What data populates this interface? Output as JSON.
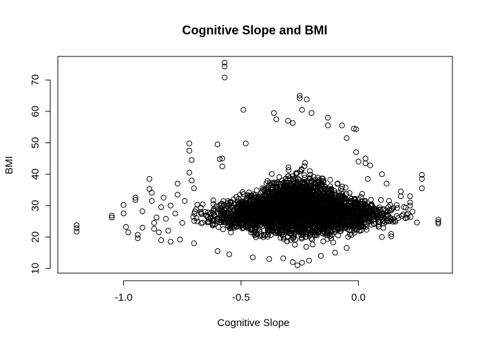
{
  "chart_data": {
    "type": "scatter",
    "title": "Cognitive Slope and BMI",
    "xlabel": "Cognitive Slope",
    "ylabel": "BMI",
    "xlim": [
      -1.28,
      0.4
    ],
    "ylim": [
      8.5,
      77.5
    ],
    "xticks": [
      -1.0,
      -0.5,
      0.0
    ],
    "xtick_labels": [
      "-1.0",
      "-0.5",
      "0.0"
    ],
    "yticks": [
      10,
      20,
      30,
      40,
      50,
      60,
      70
    ],
    "ytick_labels": [
      "10",
      "20",
      "30",
      "40",
      "50",
      "60",
      "70"
    ],
    "grid": false,
    "legend": "none",
    "marker": "open-circle",
    "color": "#000000",
    "points": [
      [
        -1.2,
        23.8
      ],
      [
        -1.2,
        22.8
      ],
      [
        -1.2,
        21.7
      ],
      [
        -1.05,
        26.8
      ],
      [
        -1.05,
        26.2
      ],
      [
        -1.0,
        30.2
      ],
      [
        -1.0,
        27.5
      ],
      [
        -0.99,
        23.2
      ],
      [
        -0.98,
        21.5
      ],
      [
        -0.95,
        32.5
      ],
      [
        -0.95,
        31.8
      ],
      [
        -0.94,
        20.7
      ],
      [
        -0.94,
        19.6
      ],
      [
        -0.92,
        28.2
      ],
      [
        -0.92,
        23.0
      ],
      [
        -0.89,
        38.5
      ],
      [
        -0.89,
        35.3
      ],
      [
        -0.88,
        34.1
      ],
      [
        -0.88,
        31.5
      ],
      [
        -0.87,
        24.5
      ],
      [
        -0.87,
        22.6
      ],
      [
        -0.86,
        26.2
      ],
      [
        -0.85,
        21.5
      ],
      [
        -0.84,
        29.5
      ],
      [
        -0.84,
        19.0
      ],
      [
        -0.83,
        32.5
      ],
      [
        -0.82,
        25.8
      ],
      [
        -0.81,
        22.0
      ],
      [
        -0.8,
        30.0
      ],
      [
        -0.8,
        18.5
      ],
      [
        -0.78,
        27.5
      ],
      [
        -0.77,
        37.0
      ],
      [
        -0.77,
        33.5
      ],
      [
        -0.76,
        19.2
      ],
      [
        -0.75,
        24.5
      ],
      [
        -0.74,
        31.5
      ],
      [
        -0.72,
        49.8
      ],
      [
        -0.72,
        47.5
      ],
      [
        -0.72,
        40.5
      ],
      [
        -0.71,
        44.5
      ],
      [
        -0.71,
        38.0
      ],
      [
        -0.7,
        35.5
      ],
      [
        -0.7,
        18.0
      ],
      [
        -0.6,
        49.5
      ],
      [
        -0.59,
        44.8
      ],
      [
        -0.58,
        45.0
      ],
      [
        -0.58,
        42.5
      ],
      [
        -0.57,
        75.5
      ],
      [
        -0.57,
        74.3
      ],
      [
        -0.57,
        70.8
      ],
      [
        -0.49,
        60.5
      ],
      [
        -0.48,
        49.8
      ],
      [
        -0.36,
        59.5
      ],
      [
        -0.35,
        57.5
      ],
      [
        -0.3,
        57.0
      ],
      [
        -0.28,
        56.3
      ],
      [
        -0.25,
        65.0
      ],
      [
        -0.25,
        64.2
      ],
      [
        -0.24,
        60.5
      ],
      [
        -0.22,
        63.8
      ],
      [
        -0.2,
        59.5
      ],
      [
        -0.13,
        58.0
      ],
      [
        -0.13,
        55.5
      ],
      [
        -0.07,
        55.5
      ],
      [
        -0.05,
        51.5
      ],
      [
        -0.02,
        54.5
      ],
      [
        -0.01,
        54.3
      ],
      [
        -0.01,
        47.0
      ],
      [
        0.0,
        44.0
      ],
      [
        0.03,
        45.0
      ],
      [
        0.03,
        43.5
      ],
      [
        0.05,
        42.8
      ],
      [
        0.04,
        38.5
      ],
      [
        0.1,
        40.0
      ],
      [
        0.12,
        37.0
      ],
      [
        0.14,
        28.5
      ],
      [
        0.13,
        31.5
      ],
      [
        0.18,
        34.5
      ],
      [
        0.18,
        33.0
      ],
      [
        0.2,
        26.0
      ],
      [
        0.21,
        27.5
      ],
      [
        0.22,
        33.0
      ],
      [
        0.22,
        31.0
      ],
      [
        0.22,
        30.0
      ],
      [
        0.27,
        39.8
      ],
      [
        0.27,
        38.5
      ],
      [
        0.27,
        35.5
      ],
      [
        0.34,
        25.5
      ],
      [
        0.34,
        24.8
      ],
      [
        0.34,
        24.3
      ],
      [
        -0.6,
        15.5
      ],
      [
        -0.55,
        14.5
      ],
      [
        -0.45,
        13.5
      ],
      [
        -0.38,
        13.0
      ],
      [
        -0.32,
        13.2
      ],
      [
        -0.28,
        12.0
      ],
      [
        -0.26,
        11.0
      ],
      [
        -0.24,
        11.8
      ],
      [
        -0.21,
        12.5
      ],
      [
        -0.16,
        14.0
      ],
      [
        -0.1,
        15.0
      ],
      [
        -0.05,
        16.5
      ],
      [
        0.1,
        20.0
      ],
      [
        0.14,
        20.2
      ]
    ],
    "dense_cloud": {
      "description_free_note": "",
      "peak_x": -0.25,
      "x_range": [
        -0.9,
        0.3
      ],
      "y_center": 27,
      "y_spread": 6
    }
  }
}
